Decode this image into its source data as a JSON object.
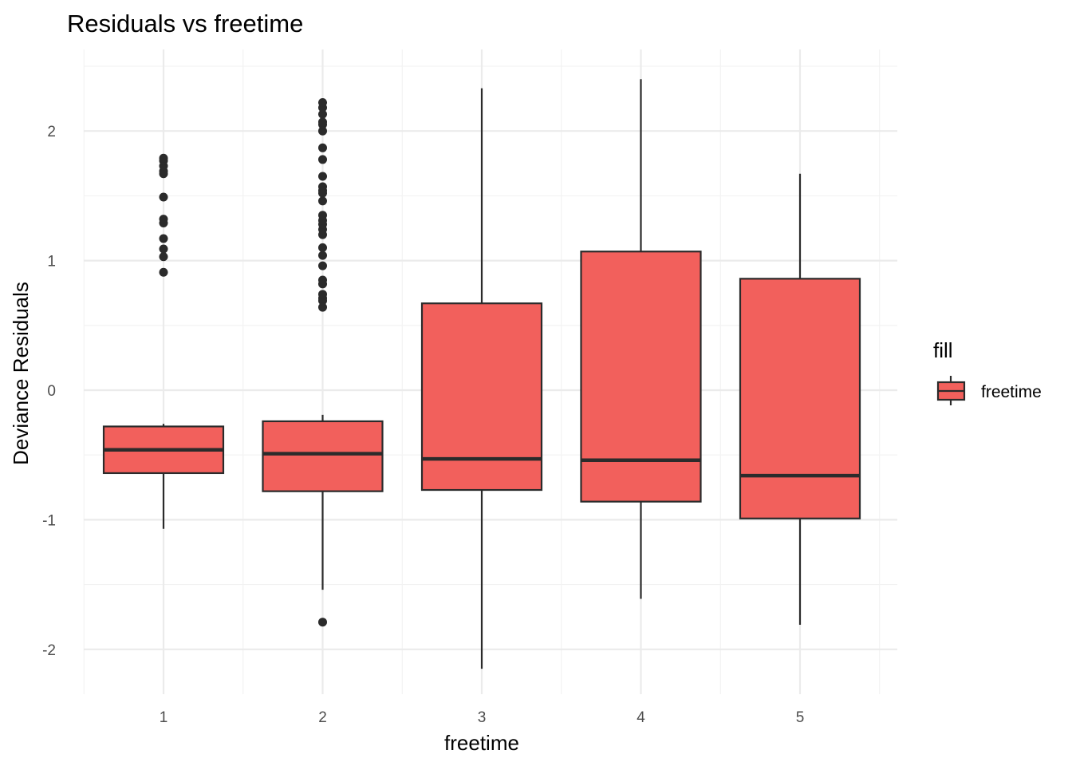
{
  "chart_data": {
    "type": "boxplot",
    "title": "Residuals vs freetime",
    "xlabel": "freetime",
    "ylabel": "Deviance Residuals",
    "categories": [
      "1",
      "2",
      "3",
      "4",
      "5"
    ],
    "ylim": [
      -2.3,
      2.5
    ],
    "yticks": [
      -2,
      -1,
      0,
      1,
      2
    ],
    "ytick_labels": [
      "-2",
      "-1",
      "0",
      "1",
      "2"
    ],
    "grid": true,
    "fill_color": "#F2605C",
    "legend": {
      "title": "fill",
      "position": "right",
      "entries": [
        "freetime"
      ]
    },
    "boxes": [
      {
        "category": "1",
        "whisker_low": -1.07,
        "q1": -0.64,
        "median": -0.46,
        "q3": -0.28,
        "whisker_high": -0.26,
        "outliers": [
          0.91,
          1.03,
          1.09,
          1.17,
          1.29,
          1.32,
          1.49,
          1.67,
          1.69,
          1.73,
          1.77,
          1.79
        ]
      },
      {
        "category": "2",
        "whisker_low": -1.54,
        "q1": -0.78,
        "median": -0.49,
        "q3": -0.24,
        "whisker_high": -0.19,
        "outliers": [
          -1.79,
          0.64,
          0.69,
          0.71,
          0.74,
          0.82,
          0.85,
          0.96,
          1.04,
          1.1,
          1.2,
          1.24,
          1.28,
          1.31,
          1.35,
          1.46,
          1.52,
          1.54,
          1.57,
          1.65,
          1.78,
          1.87,
          2.0,
          2.05,
          2.07,
          2.13,
          2.18,
          2.22
        ]
      },
      {
        "category": "3",
        "whisker_low": -2.15,
        "q1": -0.77,
        "median": -0.53,
        "q3": 0.67,
        "whisker_high": 2.33,
        "outliers": []
      },
      {
        "category": "4",
        "whisker_low": -1.61,
        "q1": -0.86,
        "median": -0.54,
        "q3": 1.07,
        "whisker_high": 2.4,
        "outliers": []
      },
      {
        "category": "5",
        "whisker_low": -1.81,
        "q1": -0.99,
        "median": -0.66,
        "q3": 0.86,
        "whisker_high": 1.67,
        "outliers": []
      }
    ]
  }
}
